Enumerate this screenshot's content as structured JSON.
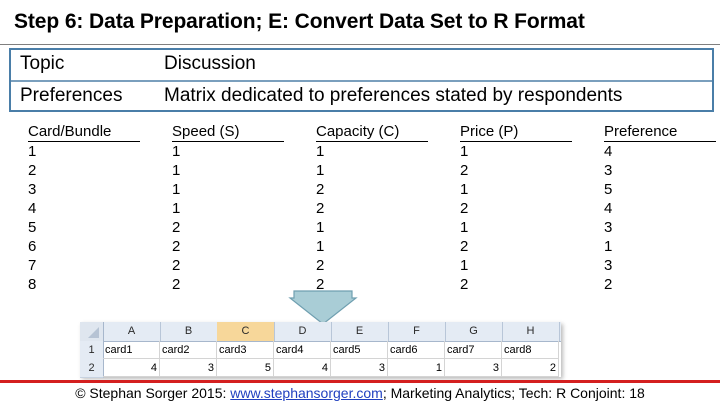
{
  "title": "Step 6: Data Preparation; E: Convert Data Set to R Format",
  "topic_table": {
    "header": {
      "topic": "Topic",
      "discussion": "Discussion"
    },
    "row": {
      "topic": "Preferences",
      "discussion": "Matrix dedicated to preferences stated by respondents"
    }
  },
  "matrix": {
    "columns": [
      "Card/Bundle",
      "Speed (S)",
      "Capacity (C)",
      "Price (P)",
      "Preference"
    ],
    "rows": [
      [
        "1",
        "1",
        "1",
        "1",
        "4"
      ],
      [
        "2",
        "1",
        "1",
        "2",
        "3"
      ],
      [
        "3",
        "1",
        "2",
        "1",
        "5"
      ],
      [
        "4",
        "1",
        "2",
        "2",
        "4"
      ],
      [
        "5",
        "2",
        "1",
        "1",
        "3"
      ],
      [
        "6",
        "2",
        "1",
        "2",
        "1"
      ],
      [
        "7",
        "2",
        "2",
        "1",
        "3"
      ],
      [
        "8",
        "2",
        "2",
        "2",
        "2"
      ]
    ]
  },
  "spreadsheet": {
    "col_headers": [
      "A",
      "B",
      "C",
      "D",
      "E",
      "F",
      "G",
      "H"
    ],
    "active_col": "C",
    "row_headers": [
      "1",
      "2"
    ],
    "row1": [
      "card1",
      "card2",
      "card3",
      "card4",
      "card5",
      "card6",
      "card7",
      "card8"
    ],
    "row2": [
      "4",
      "3",
      "5",
      "4",
      "3",
      "1",
      "3",
      "2"
    ]
  },
  "footer": {
    "prefix": "© Stephan Sorger 2015: ",
    "link": "www.stephansorger.com",
    "suffix": "; Marketing Analytics; Tech: R Conjoint: 18"
  },
  "colors": {
    "box_border": "#4a7ea8",
    "arrow_fill": "#a9cdd6",
    "footer_rule": "#d41f1f",
    "active_column": "#f7d79a"
  }
}
